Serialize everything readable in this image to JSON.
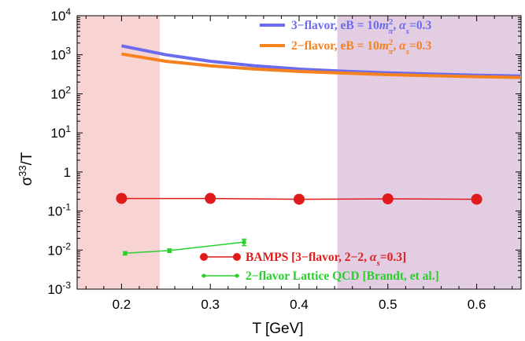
{
  "chart_data": {
    "type": "line",
    "xlabel": "T [GeV]",
    "ylabel": "σ³³/T",
    "xlim": [
      0.15,
      0.65
    ],
    "ylim": [
      0.001,
      10000
    ],
    "yscale": "log",
    "x_ticks": [
      "0.2",
      "0.3",
      "0.4",
      "0.5",
      "0.6"
    ],
    "y_ticks": [
      "10⁻³",
      "10⁻²",
      "10⁻¹",
      "1",
      "10¹",
      "10²",
      "10³",
      "10⁴"
    ],
    "shaded_regions": [
      {
        "x_range": [
          0.15,
          0.243
        ],
        "color": "#f8d3d3"
      },
      {
        "x_range": [
          0.443,
          0.65
        ],
        "color": "#e3cde3"
      }
    ],
    "series": [
      {
        "name": "3−flavor, eB = 10mπ², αs=0.3",
        "style": "line",
        "color": "#6b6bf0",
        "x": [
          0.2,
          0.25,
          0.3,
          0.35,
          0.4,
          0.45,
          0.5,
          0.55,
          0.6,
          0.65
        ],
        "y": [
          1700,
          1000,
          680,
          520,
          430,
          380,
          345,
          320,
          300,
          285
        ]
      },
      {
        "name": "2−flavor, eB = 10mπ², αs=0.3",
        "style": "line",
        "color": "#f5811f",
        "x": [
          0.2,
          0.25,
          0.3,
          0.35,
          0.4,
          0.45,
          0.5,
          0.55,
          0.6,
          0.65
        ],
        "y": [
          1050,
          680,
          520,
          430,
          375,
          340,
          310,
          290,
          275,
          262
        ]
      },
      {
        "name": "BAMPS [3−flavor, 2−2, αs=0.3]",
        "style": "line-marker",
        "color": "#e01b1b",
        "x": [
          0.2,
          0.3,
          0.4,
          0.5,
          0.6
        ],
        "y": [
          0.21,
          0.21,
          0.2,
          0.205,
          0.2
        ]
      },
      {
        "name": "2−flavor Lattice QCD [Brandt, et al.]",
        "style": "errorbar",
        "color": "#27d12a",
        "x": [
          0.204,
          0.254,
          0.338
        ],
        "y": [
          0.0083,
          0.0097,
          0.016
        ],
        "yerr": [
          0.0008,
          0.001,
          0.003
        ]
      }
    ],
    "legend_top": {
      "position": "top-right",
      "entries": [
        {
          "text": "3−flavor, eB = 10",
          "m": "m",
          "sub": "π",
          "sup": "2",
          "tail": ", ",
          "alpha": "α",
          "s": "s",
          "end": "=0.3",
          "color": "#6b6bf0"
        },
        {
          "text": "2−flavor, eB = 10",
          "m": "m",
          "sub": "π",
          "sup": "2",
          "tail": ", ",
          "alpha": "α",
          "s": "s",
          "end": "=0.3",
          "color": "#f5811f"
        }
      ]
    },
    "legend_bottom": {
      "position": "bottom-right",
      "entries": [
        {
          "pre": "BAMPS [3−flavor, 2−2, ",
          "alpha": "α",
          "s": "s",
          "end": "=0.3]",
          "color": "#e01b1b"
        },
        {
          "pre": "2−flavor Lattice QCD [Brandt, et al.]",
          "alpha": "",
          "s": "",
          "end": "",
          "color": "#27d12a"
        }
      ]
    }
  }
}
